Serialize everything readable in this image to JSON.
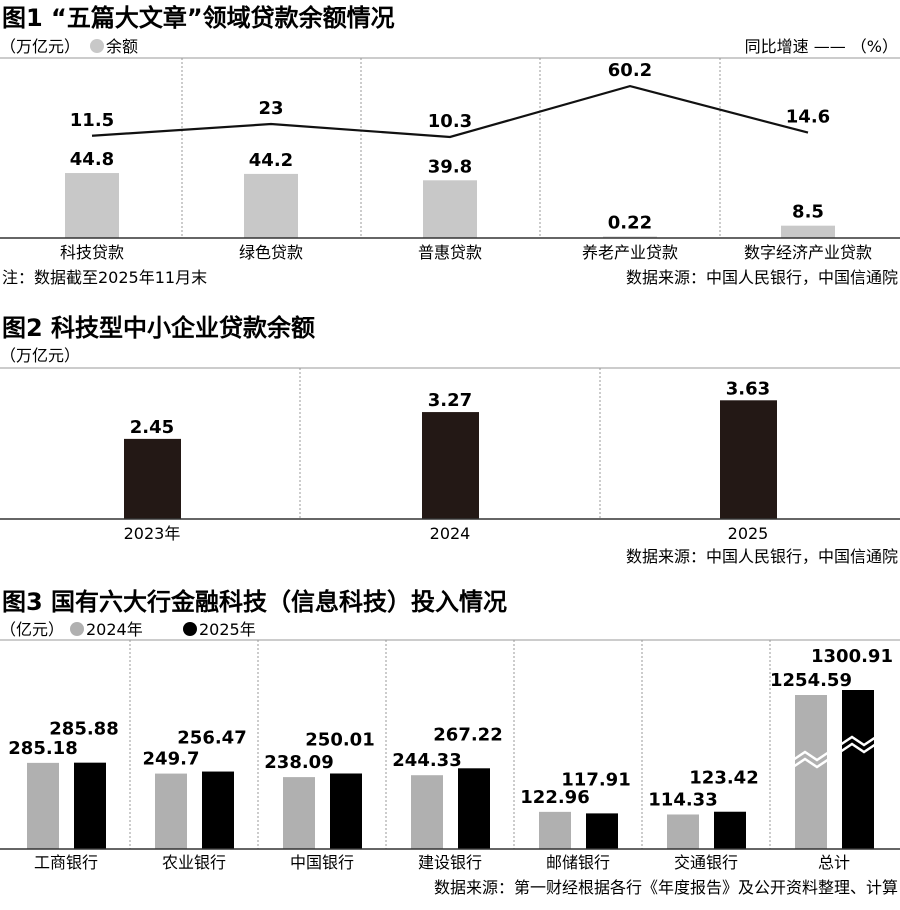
{
  "chart_data": [
    {
      "type": "bar+line",
      "title": "图1 “五篇大文章”领域贷款余额情况",
      "unit_label": "（万亿元）",
      "legend": {
        "bar": "余额",
        "line": "同比增速 —— （%）"
      },
      "categories": [
        "科技贷款",
        "绿色贷款",
        "普惠贷款",
        "养老产业贷款",
        "数字经济产业贷款"
      ],
      "series": [
        {
          "name": "余额",
          "type": "bar",
          "color": "#c8c8c8",
          "values": [
            44.8,
            44.2,
            39.8,
            0.22,
            8.5
          ]
        },
        {
          "name": "同比增速",
          "type": "line",
          "color": "#111111",
          "values": [
            11.5,
            23,
            10.3,
            60.2,
            14.6
          ]
        }
      ],
      "note": "注：数据截至2025年11月末",
      "source": "数据来源：中国人民银行，中国信通院"
    },
    {
      "type": "bar",
      "title": "图2 科技型中小企业贷款余额",
      "unit_label": "（万亿元）",
      "categories": [
        "2023年",
        "2024",
        "2025"
      ],
      "values": [
        2.45,
        3.27,
        3.63
      ],
      "color": "#231815",
      "source": "数据来源：中国人民银行，中国信通院"
    },
    {
      "type": "bar",
      "title": "图3 国有六大行金融科技（信息科技）投入情况",
      "unit_label": "（亿元）",
      "categories": [
        "工商银行",
        "农业银行",
        "中国银行",
        "建设银行",
        "邮储银行",
        "交通银行",
        "总计"
      ],
      "series": [
        {
          "name": "2024年",
          "color": "#b0b0b0",
          "values": [
            285.18,
            249.7,
            238.09,
            244.33,
            122.96,
            114.33,
            1254.59
          ]
        },
        {
          "name": "2025年",
          "color": "#000000",
          "values": [
            285.88,
            256.47,
            250.01,
            267.22,
            117.91,
            123.42,
            1300.91
          ]
        }
      ],
      "broken_axis_category": "总计",
      "source": "数据来源：第一财经根据各行《年度报告》及公开资料整理、计算"
    }
  ]
}
